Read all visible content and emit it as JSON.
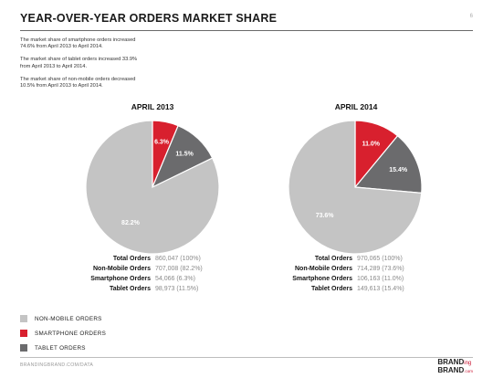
{
  "header": {
    "title": "YEAR-OVER-YEAR ORDERS MARKET SHARE",
    "page_number": "6"
  },
  "notes": [
    "The market share of smartphone orders increased 74.6% from April 2013 to April 2014.",
    "The market share of tablet orders increased 33.9% from April 2013 to April 2014.",
    "The market share of non-mobile orders decreased 10.5% from April 2013 to April 2014."
  ],
  "colors": {
    "non_mobile": "#c4c4c4",
    "smartphone": "#d8202e",
    "tablet": "#6b6b6d"
  },
  "chart_data": [
    {
      "type": "pie",
      "title": "APRIL 2013",
      "slices": [
        {
          "name": "Smartphone Orders",
          "value": 6.3,
          "label": "6.3%",
          "color": "#d8202e"
        },
        {
          "name": "Tablet Orders",
          "value": 11.5,
          "label": "11.5%",
          "color": "#6b6b6d"
        },
        {
          "name": "Non-Mobile Orders",
          "value": 82.2,
          "label": "82.2%",
          "color": "#c4c4c4"
        }
      ],
      "stats": [
        {
          "label": "Total Orders",
          "value": "860,047 (100%)"
        },
        {
          "label": "Non-Mobile Orders",
          "value": "707,008 (82.2%)"
        },
        {
          "label": "Smartphone Orders",
          "value": "54,066 (6.3%)"
        },
        {
          "label": "Tablet Orders",
          "value": "98,973 (11.5%)"
        }
      ]
    },
    {
      "type": "pie",
      "title": "APRIL 2014",
      "slices": [
        {
          "name": "Smartphone Orders",
          "value": 11.0,
          "label": "11.0%",
          "color": "#d8202e"
        },
        {
          "name": "Tablet Orders",
          "value": 15.4,
          "label": "15.4%",
          "color": "#6b6b6d"
        },
        {
          "name": "Non-Mobile Orders",
          "value": 73.6,
          "label": "73.6%",
          "color": "#c4c4c4"
        }
      ],
      "stats": [
        {
          "label": "Total Orders",
          "value": "970,065 (100%)"
        },
        {
          "label": "Non-Mobile Orders",
          "value": "714,289 (73.6%)"
        },
        {
          "label": "Smartphone Orders",
          "value": "106,163 (11.0%)"
        },
        {
          "label": "Tablet Orders",
          "value": "149,613 (15.4%)"
        }
      ]
    }
  ],
  "legend": [
    {
      "label": "NON-MOBILE ORDERS",
      "color": "#c4c4c4"
    },
    {
      "label": "SMARTPHONE ORDERS",
      "color": "#d8202e"
    },
    {
      "label": "TABLET ORDERS",
      "color": "#6b6b6d"
    }
  ],
  "footer": {
    "source": "BRANDINGBRAND.COM/DATA",
    "logo_line1_a": "BRAND",
    "logo_line1_b": "ing",
    "logo_line2_a": "BRAND",
    "logo_line2_b": ".com"
  }
}
